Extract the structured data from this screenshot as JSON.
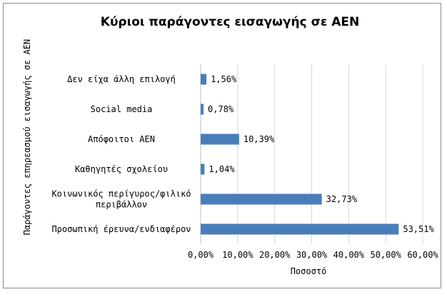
{
  "chart_data": {
    "type": "bar",
    "orientation": "horizontal",
    "title": "Κύριοι παράγοντες εισαγωγής σε ΑΕΝ",
    "xlabel": "Ποσοστό",
    "ylabel": "Παράγοντες επηρεασμού εισαγωγής σε ΑΕΝ",
    "categories": [
      "Δεν είχα άλλη επιλογή",
      "Social media",
      "Απόφοιτοι ΑΕΝ",
      "Καθηγητές σχολείου",
      "Κοινωνικός περίγυρος/φιλικό περιβάλλον",
      "Προσωπική έρευνα/ενδιαφέρον"
    ],
    "category_lines": [
      [
        "Δεν είχα άλλη επιλογή"
      ],
      [
        "Social media"
      ],
      [
        "Απόφοιτοι ΑΕΝ"
      ],
      [
        "Καθηγητές σχολείου"
      ],
      [
        "Κοινωνικός περίγυρος/φιλικό",
        "περιβάλλον"
      ],
      [
        "Προσωπική έρευνα/ενδιαφέρον"
      ]
    ],
    "values": [
      1.56,
      0.78,
      10.39,
      1.04,
      32.73,
      53.51
    ],
    "value_labels": [
      "1,56%",
      "0,78%",
      "10,39%",
      "1,04%",
      "32,73%",
      "53,51%"
    ],
    "xlim": [
      0,
      60
    ],
    "x_ticks": [
      0,
      10,
      20,
      30,
      40,
      50,
      60
    ],
    "x_tick_labels": [
      "0,00%",
      "10,00%",
      "20,00%",
      "30,00%",
      "40,00%",
      "50,00%",
      "60,00%"
    ],
    "grid": true,
    "legend": "none",
    "bar_color": "#4a7ebb",
    "grid_color": "#d9d9d9"
  }
}
